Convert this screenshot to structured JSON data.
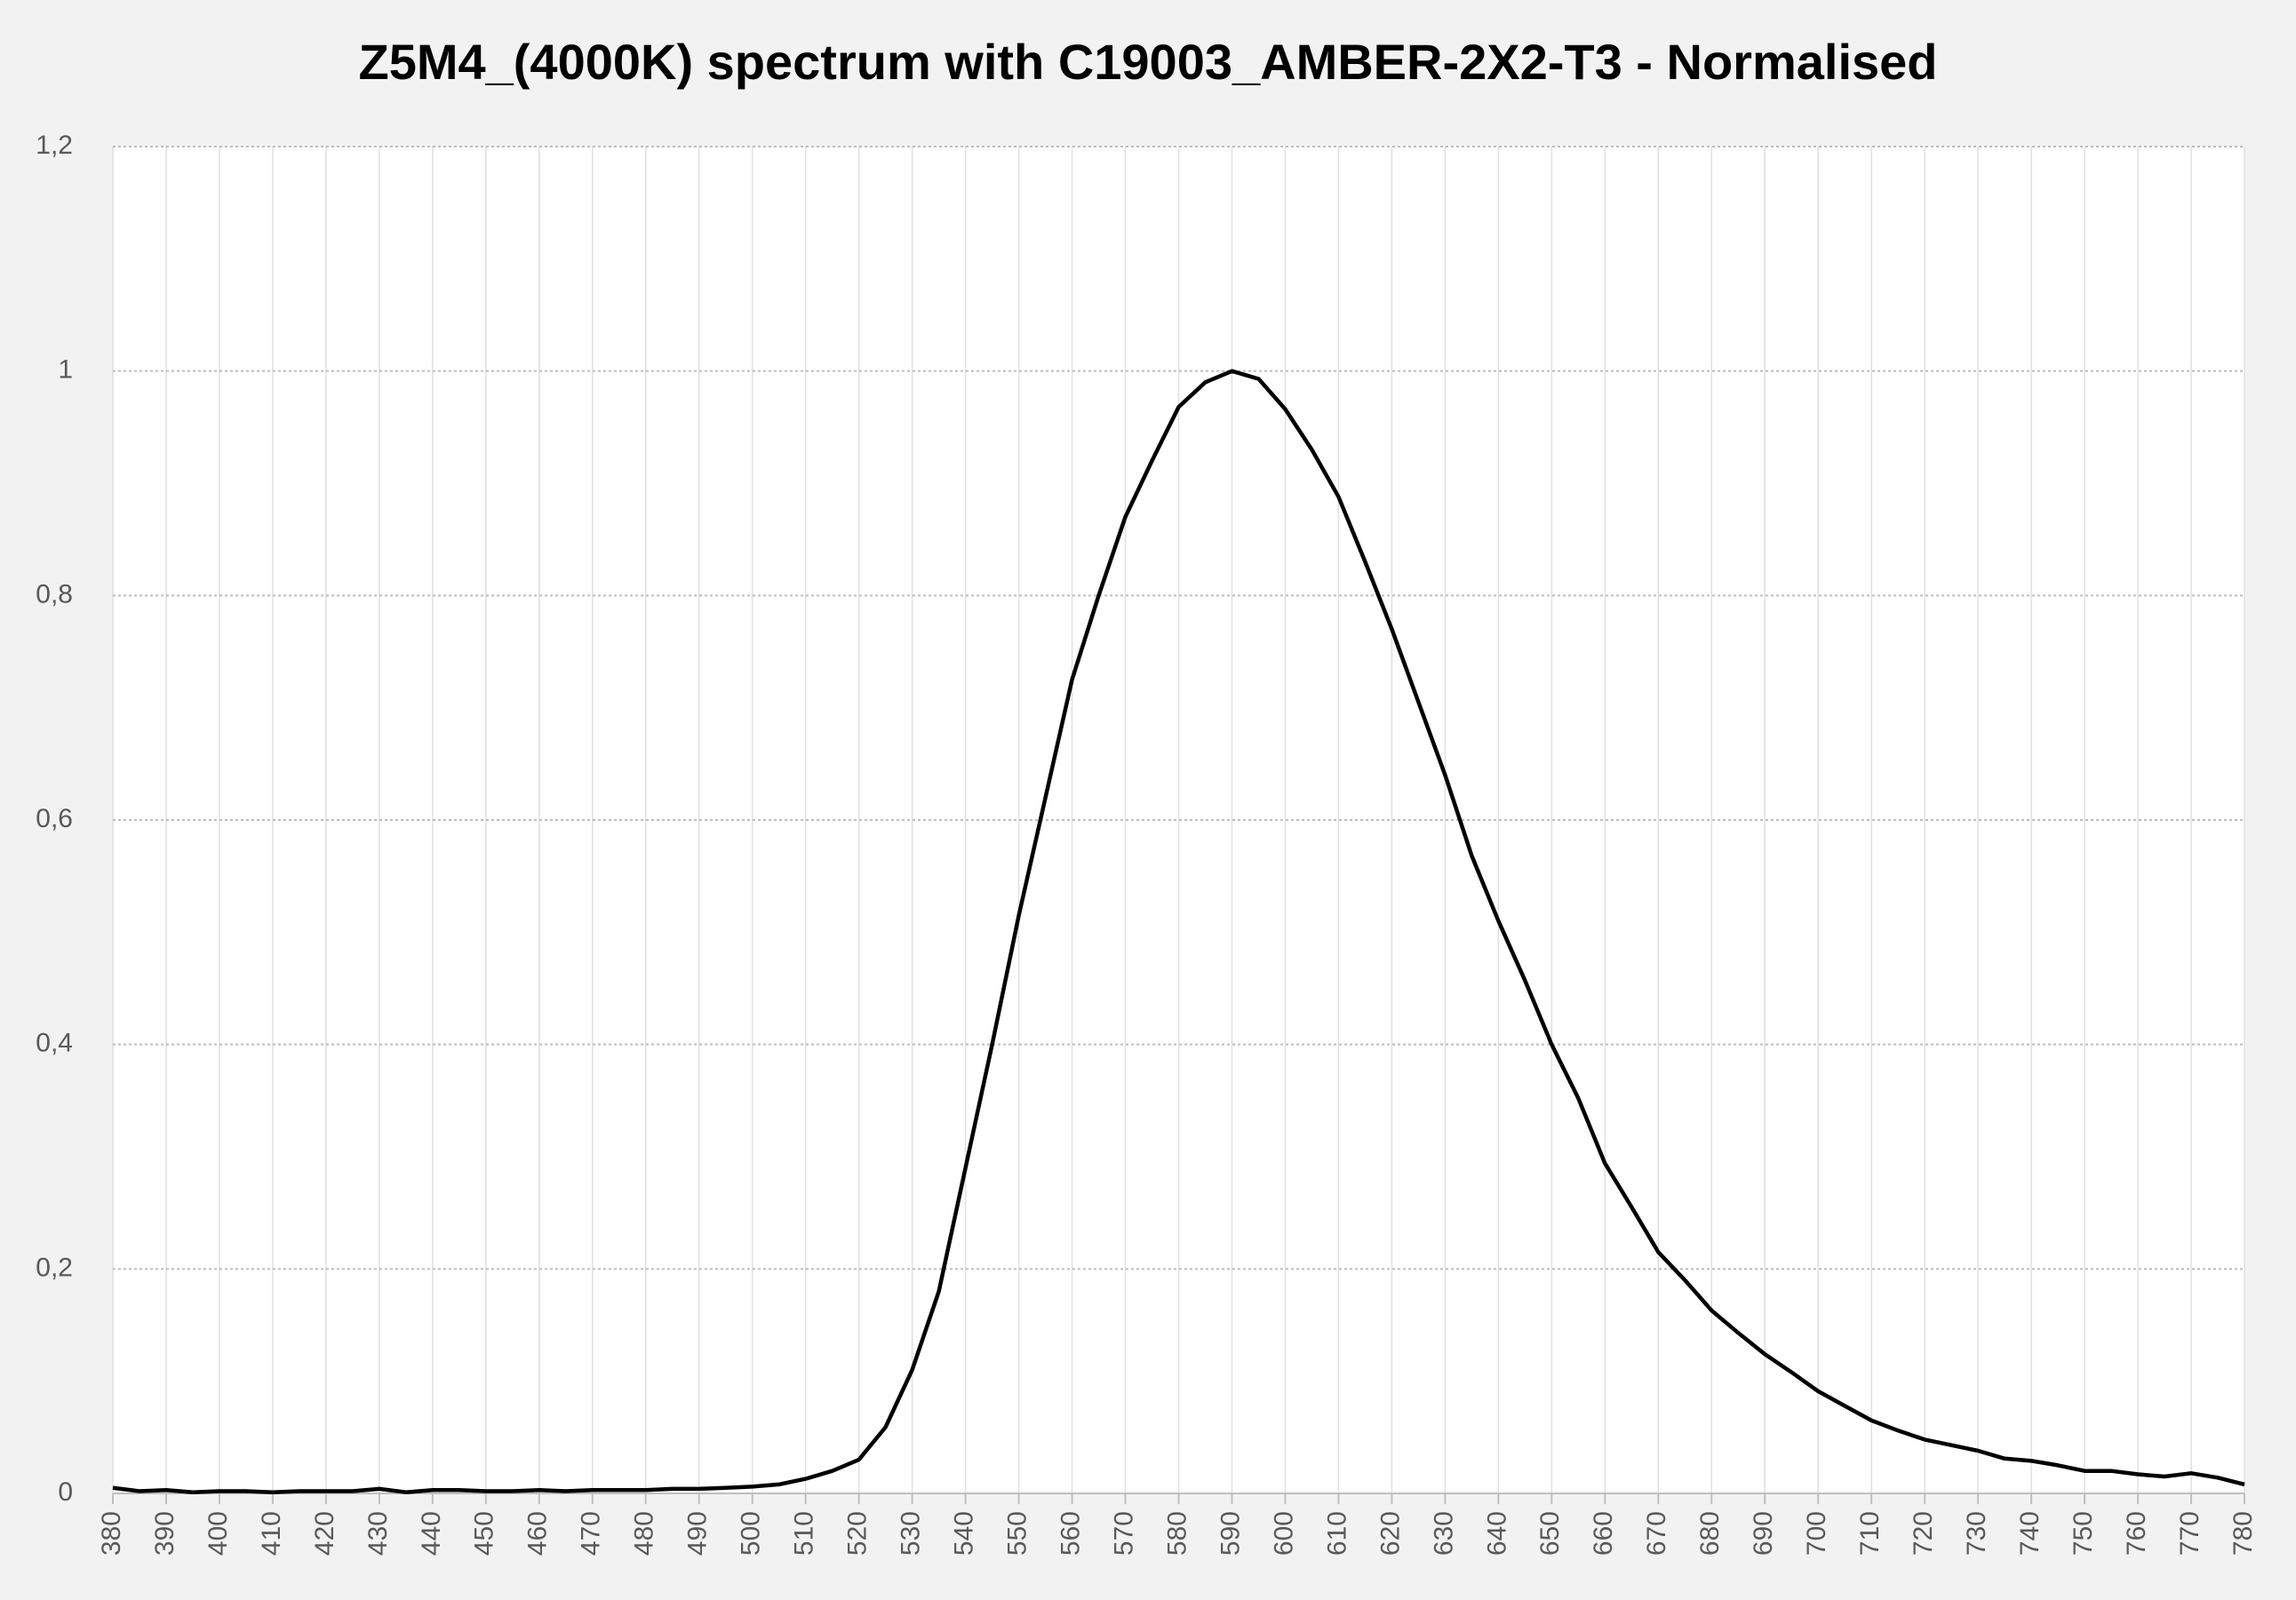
{
  "chart_data": {
    "type": "line",
    "title": "Z5M4_(4000K) spectrum with C19003_AMBER-2X2-T3 - Normalised",
    "x": [
      380,
      385,
      390,
      395,
      400,
      405,
      410,
      415,
      420,
      425,
      430,
      435,
      440,
      445,
      450,
      455,
      460,
      465,
      470,
      475,
      480,
      485,
      490,
      495,
      500,
      505,
      510,
      515,
      520,
      525,
      530,
      535,
      540,
      545,
      550,
      555,
      560,
      565,
      570,
      575,
      580,
      585,
      590,
      595,
      600,
      605,
      610,
      615,
      620,
      625,
      630,
      635,
      640,
      645,
      650,
      655,
      660,
      665,
      670,
      675,
      680,
      685,
      690,
      695,
      700,
      705,
      710,
      715,
      720,
      725,
      730,
      735,
      740,
      745,
      750,
      755,
      760,
      765,
      770,
      775,
      780
    ],
    "values": [
      0.005,
      0.002,
      0.003,
      0.001,
      0.002,
      0.002,
      0.001,
      0.002,
      0.002,
      0.002,
      0.004,
      0.001,
      0.003,
      0.003,
      0.002,
      0.002,
      0.003,
      0.002,
      0.003,
      0.003,
      0.003,
      0.004,
      0.004,
      0.005,
      0.006,
      0.008,
      0.013,
      0.02,
      0.03,
      0.059,
      0.11,
      0.18,
      0.29,
      0.4,
      0.515,
      0.62,
      0.725,
      0.8,
      0.87,
      0.92,
      0.968,
      0.99,
      1.0,
      0.993,
      0.966,
      0.93,
      0.888,
      0.83,
      0.77,
      0.705,
      0.64,
      0.568,
      0.51,
      0.457,
      0.4,
      0.352,
      0.294,
      0.255,
      0.215,
      0.19,
      0.163,
      0.143,
      0.124,
      0.108,
      0.091,
      0.078,
      0.065,
      0.056,
      0.048,
      0.043,
      0.038,
      0.031,
      0.029,
      0.025,
      0.02,
      0.02,
      0.017,
      0.015,
      0.018,
      0.014,
      0.008
    ],
    "color": "#000000",
    "xlim": [
      380,
      780
    ],
    "xticks": [
      380,
      390,
      400,
      410,
      420,
      430,
      440,
      450,
      460,
      470,
      480,
      490,
      500,
      510,
      520,
      530,
      540,
      550,
      560,
      570,
      580,
      590,
      600,
      610,
      620,
      630,
      640,
      650,
      660,
      670,
      680,
      690,
      700,
      710,
      720,
      730,
      740,
      750,
      760,
      770,
      780
    ],
    "ylim": [
      0,
      1.2
    ],
    "yticks": [
      0,
      {
        "value": 0.2,
        "label": "0,2"
      },
      {
        "value": 0.4,
        "label": "0,4"
      },
      {
        "value": 0.6,
        "label": "0,6"
      },
      {
        "value": 0.8,
        "label": "0,8"
      },
      1,
      {
        "value": 1.2,
        "label": "1,2"
      }
    ],
    "grid": true
  }
}
